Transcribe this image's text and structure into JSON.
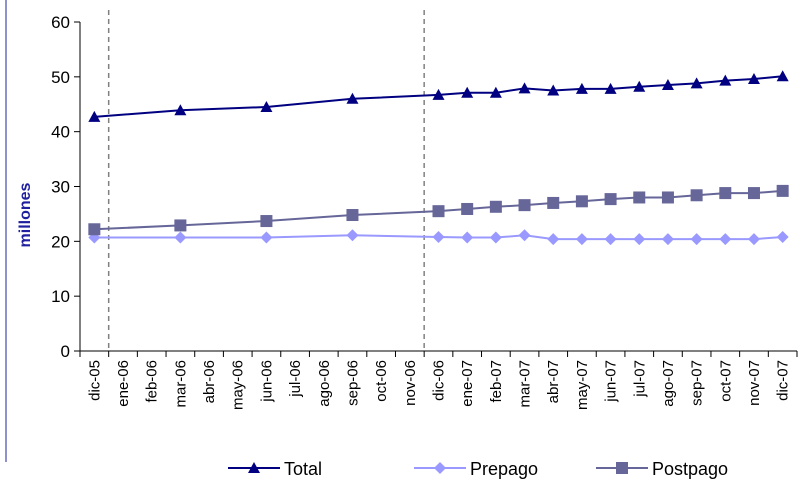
{
  "chart_data": {
    "type": "line",
    "title": "",
    "xlabel": "",
    "ylabel": "millones",
    "ylim": [
      0,
      60
    ],
    "yticks": [
      0,
      10,
      20,
      30,
      40,
      50,
      60
    ],
    "grid": false,
    "legend_position": "bottom",
    "categories": [
      "dic-05",
      "ene-06",
      "feb-06",
      "mar-06",
      "abr-06",
      "may-06",
      "jun-06",
      "jul-06",
      "ago-06",
      "sep-06",
      "oct-06",
      "nov-06",
      "dic-06",
      "ene-07",
      "feb-07",
      "mar-07",
      "abr-07",
      "may-07",
      "jun-07",
      "jul-07",
      "ago-07",
      "sep-07",
      "oct-07",
      "nov-07",
      "dic-07"
    ],
    "reference_lines": [
      "ene-06",
      "dic-06"
    ],
    "series": [
      {
        "name": "Total",
        "color": "#000080",
        "marker": "triangle",
        "values": [
          42.7,
          null,
          null,
          43.9,
          null,
          null,
          44.5,
          null,
          null,
          46.0,
          null,
          null,
          46.7,
          47.1,
          47.1,
          47.9,
          47.5,
          47.8,
          47.8,
          48.2,
          48.5,
          48.8,
          49.3,
          49.6,
          50.1
        ]
      },
      {
        "name": "Prepago",
        "color": "#9999ff",
        "marker": "diamond",
        "values": [
          20.7,
          null,
          null,
          20.7,
          null,
          null,
          20.7,
          null,
          null,
          21.1,
          null,
          null,
          20.8,
          20.7,
          20.7,
          21.1,
          20.4,
          20.4,
          20.4,
          20.4,
          20.4,
          20.4,
          20.4,
          20.4,
          20.8
        ]
      },
      {
        "name": "Postpago",
        "color": "#666699",
        "marker": "square",
        "values": [
          22.2,
          null,
          null,
          22.9,
          null,
          null,
          23.7,
          null,
          null,
          24.8,
          null,
          null,
          25.5,
          25.9,
          26.3,
          26.6,
          27.0,
          27.3,
          27.7,
          28.0,
          28.0,
          28.4,
          28.8,
          28.8,
          29.2
        ]
      }
    ]
  }
}
